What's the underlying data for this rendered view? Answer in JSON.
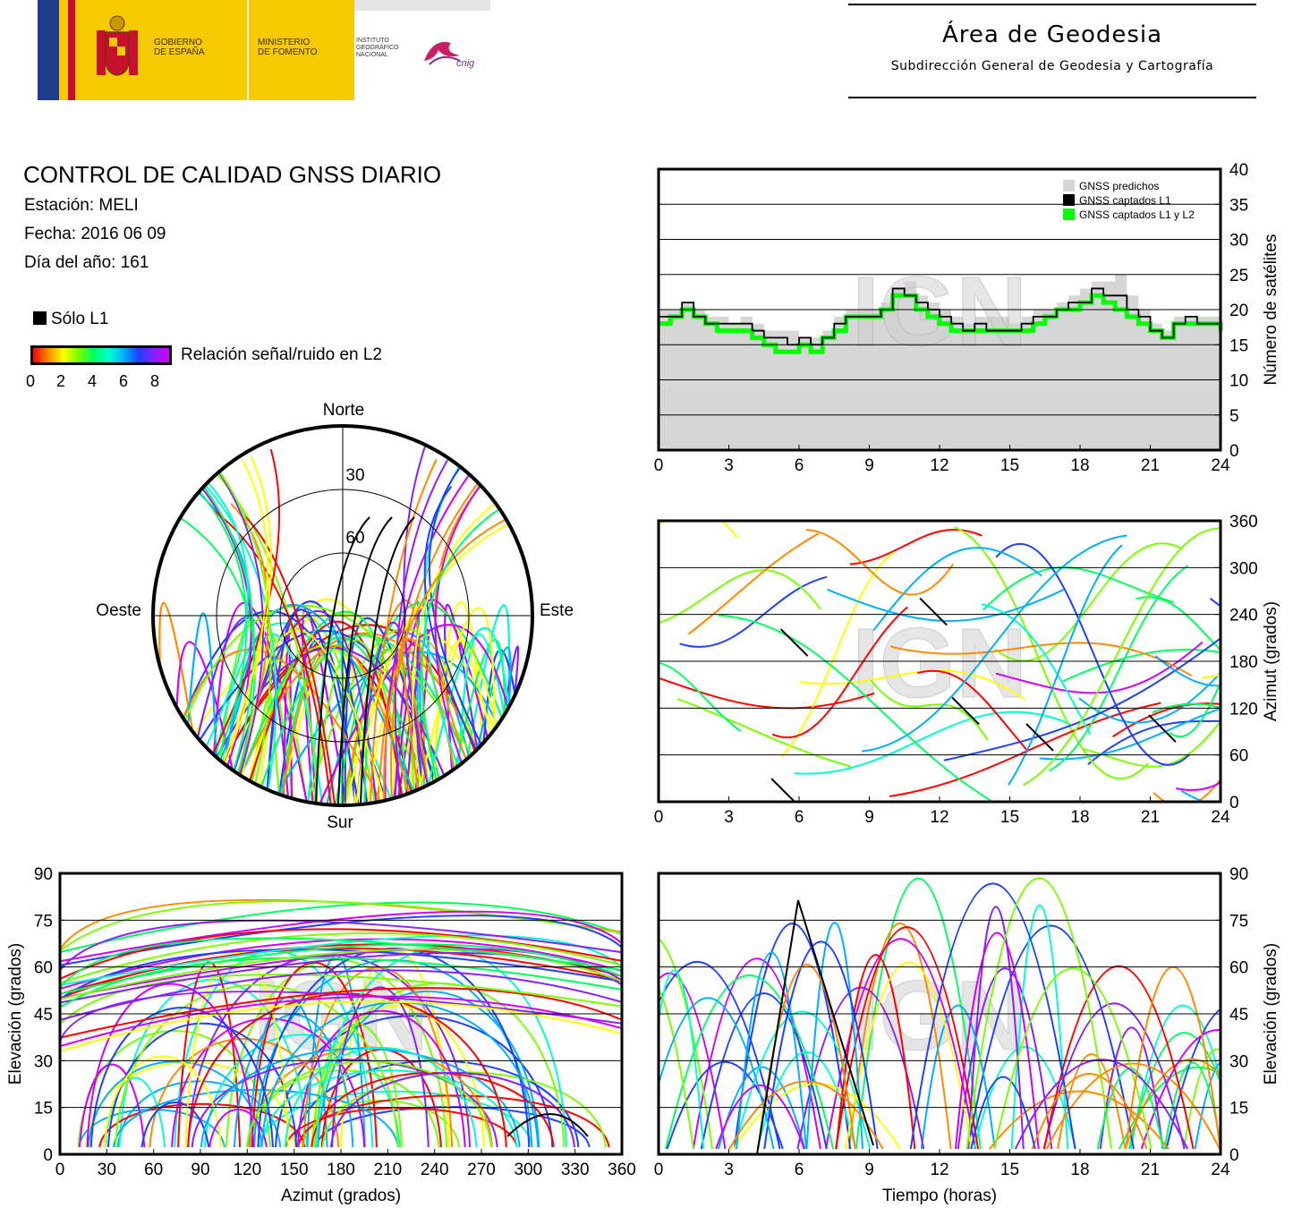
{
  "header": {
    "logo_gobierno": "GOBIERNO\nDE ESPAÑA",
    "logo_ministerio": "MINISTERIO\nDE FOMENTO",
    "logo_instituto": "INSTITUTO\nGEOGRÁFICO\nNACIONAL",
    "logo_cnig": "cnig",
    "area_title": "Área de Geodesia",
    "area_subtitle": "Subdirección General de Geodesia y Cartografía"
  },
  "report": {
    "title": "CONTROL DE CALIDAD GNSS DIARIO",
    "station": "Estación: MELI",
    "date": "Fecha: 2016 06 09",
    "doy": "Día del año: 161"
  },
  "legend": {
    "solo_l1": "Sólo L1",
    "snr_label": "Relación señal/ruido en L2",
    "snr_ticks": [
      "0",
      "2",
      "4",
      "6",
      "8"
    ],
    "snr_colors": [
      "#ff0000",
      "#ff8a00",
      "#ffff00",
      "#7aff00",
      "#00ff60",
      "#00ffd0",
      "#00b0ff",
      "#2040ff",
      "#8a20ff",
      "#d000ff"
    ]
  },
  "watermark": "IGN",
  "chart_data": [
    {
      "type": "polar",
      "id": "skyplot",
      "directions": {
        "north": "Norte",
        "south": "Sur",
        "east": "Este",
        "west": "Oeste"
      },
      "ring_labels": [
        "30",
        "60"
      ],
      "note_l1_only_color": "#000000"
    },
    {
      "type": "area",
      "id": "satellites",
      "ylabel": "Número de satélites",
      "ylim": [
        0,
        40
      ],
      "yticks": [
        "0",
        "5",
        "10",
        "15",
        "20",
        "25",
        "30",
        "35",
        "40"
      ],
      "xlim": [
        0,
        24
      ],
      "xticks": [
        "0",
        "3",
        "6",
        "9",
        "12",
        "15",
        "18",
        "21",
        "24"
      ],
      "legend": [
        "GNSS predichos",
        "GNSS captados L1",
        "GNSS captados L1 y L2"
      ],
      "colors": {
        "predicted": "#d6d6d6",
        "l1": "#000000",
        "l1l2": "#00ff00"
      },
      "x": [
        0,
        0.5,
        1,
        1.5,
        2,
        2.5,
        3,
        3.5,
        4,
        4.5,
        5,
        5.5,
        6,
        6.5,
        7,
        7.5,
        8,
        8.5,
        9,
        9.5,
        10,
        10.5,
        11,
        11.5,
        12,
        12.5,
        13,
        13.5,
        14,
        14.5,
        15,
        15.5,
        16,
        16.5,
        17,
        17.5,
        18,
        18.5,
        19,
        19.5,
        20,
        20.5,
        21,
        21.5,
        22,
        22.5,
        23,
        23.5,
        24
      ],
      "series": [
        {
          "name": "GNSS predichos",
          "values": [
            20,
            20,
            21,
            20,
            19,
            19,
            18,
            19,
            18,
            17,
            17,
            17,
            16,
            16,
            17,
            19,
            20,
            20,
            20,
            21,
            23,
            24,
            22,
            21,
            20,
            19,
            18,
            19,
            19,
            19,
            18,
            19,
            20,
            20,
            21,
            22,
            23,
            24,
            24,
            25,
            22,
            20,
            18,
            17,
            19,
            19,
            19,
            19,
            19
          ]
        },
        {
          "name": "GNSS captados L1",
          "values": [
            19,
            19,
            21,
            19,
            18,
            18,
            18,
            18,
            17,
            16,
            16,
            15,
            16,
            15,
            16,
            18,
            19,
            19,
            19,
            20,
            23,
            22,
            21,
            20,
            19,
            18,
            17,
            18,
            17,
            17,
            17,
            18,
            19,
            19,
            20,
            21,
            21,
            23,
            22,
            22,
            20,
            19,
            17,
            16,
            18,
            19,
            18,
            18,
            18
          ]
        },
        {
          "name": "GNSS captados L1 y L2",
          "values": [
            18,
            19,
            20,
            19,
            18,
            17,
            17,
            17,
            16,
            15,
            14,
            14,
            15,
            14,
            16,
            17,
            19,
            19,
            19,
            20,
            22,
            22,
            20,
            19,
            18,
            17,
            17,
            17,
            17,
            17,
            17,
            17,
            18,
            19,
            20,
            20,
            21,
            22,
            21,
            20,
            19,
            18,
            17,
            16,
            18,
            18,
            18,
            18,
            17
          ]
        }
      ]
    },
    {
      "type": "scatter",
      "id": "azimuth-time",
      "ylabel": "Azimut (grados)",
      "ylim": [
        0,
        360
      ],
      "yticks": [
        "0",
        "60",
        "120",
        "180",
        "240",
        "300",
        "360"
      ],
      "xlim": [
        0,
        24
      ],
      "xticks": [
        "0",
        "3",
        "6",
        "9",
        "12",
        "15",
        "18",
        "21",
        "24"
      ]
    },
    {
      "type": "scatter",
      "id": "elevation-azimuth",
      "xlabel": "Azimut (grados)",
      "ylabel": "Elevación (grados)",
      "xlim": [
        0,
        360
      ],
      "xticks": [
        "0",
        "30",
        "60",
        "90",
        "120",
        "150",
        "180",
        "210",
        "240",
        "270",
        "300",
        "330",
        "360"
      ],
      "ylim": [
        0,
        90
      ],
      "yticks": [
        "0",
        "15",
        "30",
        "45",
        "60",
        "75",
        "90"
      ]
    },
    {
      "type": "line",
      "id": "elevation-time",
      "xlabel": "Tiempo (horas)",
      "ylabel": "Elevación (grados)",
      "xlim": [
        0,
        24
      ],
      "xticks": [
        "0",
        "3",
        "6",
        "9",
        "12",
        "15",
        "18",
        "21",
        "24"
      ],
      "ylim": [
        0,
        90
      ],
      "yticks": [
        "0",
        "15",
        "30",
        "45",
        "60",
        "75",
        "90"
      ]
    }
  ]
}
